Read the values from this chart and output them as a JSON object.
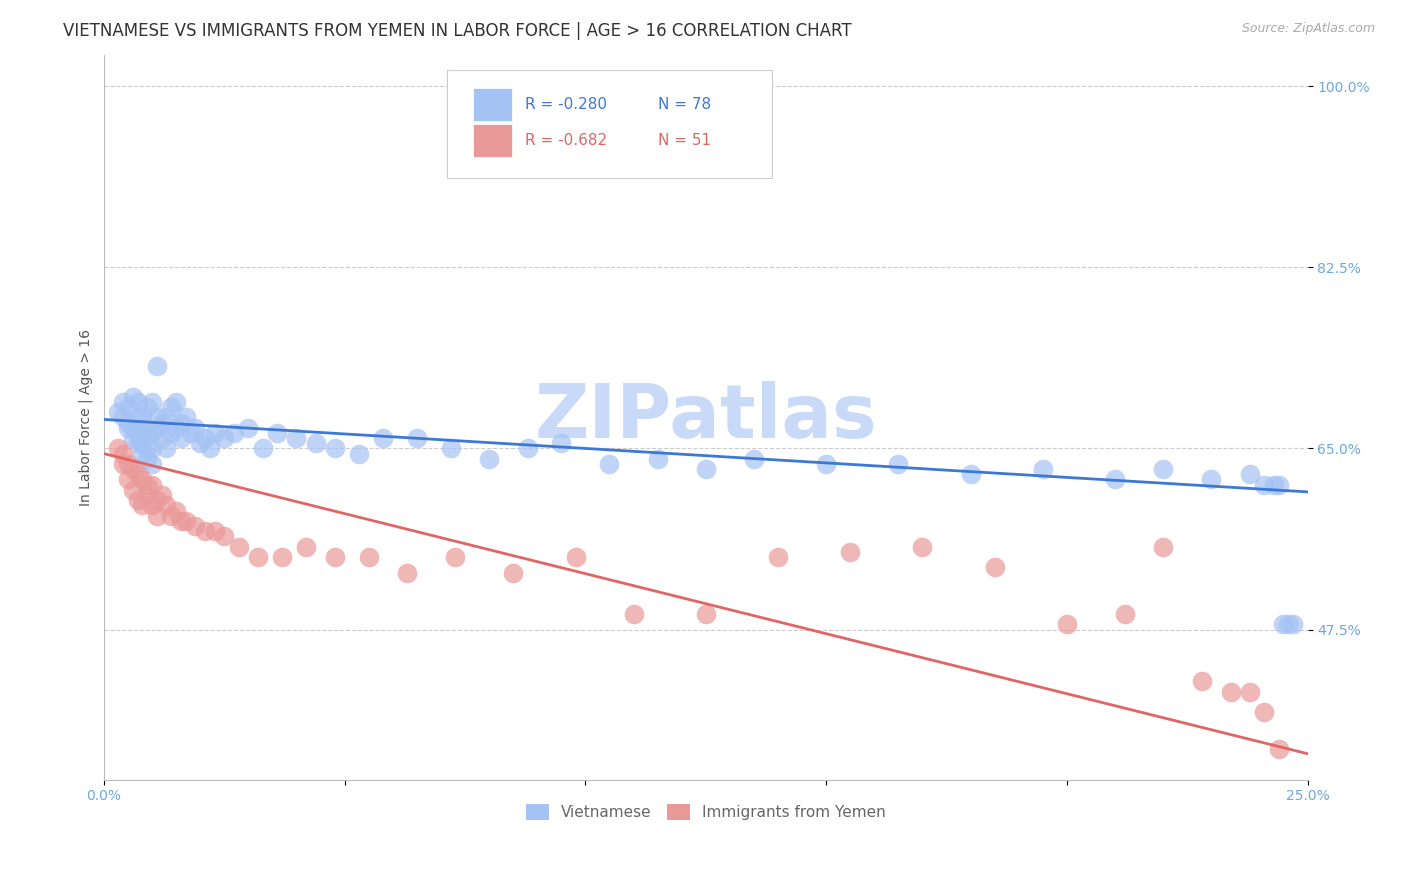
{
  "title": "VIETNAMESE VS IMMIGRANTS FROM YEMEN IN LABOR FORCE | AGE > 16 CORRELATION CHART",
  "source": "Source: ZipAtlas.com",
  "ylabel": "In Labor Force | Age > 16",
  "xlim": [
    0.0,
    0.25
  ],
  "ylim": [
    0.33,
    1.03
  ],
  "yticks": [
    0.475,
    0.65,
    0.825,
    1.0
  ],
  "ytick_labels": [
    "47.5%",
    "65.0%",
    "82.5%",
    "100.0%"
  ],
  "xticks": [
    0.0,
    0.05,
    0.1,
    0.15,
    0.2,
    0.25
  ],
  "xtick_labels": [
    "0.0%",
    "",
    "",
    "",
    "",
    "25.0%"
  ],
  "title_fontsize": 12,
  "source_fontsize": 9,
  "axis_label_fontsize": 10,
  "tick_label_fontsize": 10,
  "legend_R1": "-0.280",
  "legend_N1": "78",
  "legend_R2": "-0.682",
  "legend_N2": "51",
  "blue_color": "#a4c2f4",
  "pink_color": "#ea9999",
  "blue_line_color": "#3c78d8",
  "pink_line_color": "#e06666",
  "tick_color": "#6fa8dc",
  "watermark": "ZIPatlas",
  "watermark_color": "#c9daf8",
  "background_color": "#ffffff",
  "vietnamese_x": [
    0.003,
    0.004,
    0.004,
    0.005,
    0.005,
    0.005,
    0.006,
    0.006,
    0.006,
    0.007,
    0.007,
    0.007,
    0.007,
    0.008,
    0.008,
    0.008,
    0.008,
    0.009,
    0.009,
    0.009,
    0.009,
    0.01,
    0.01,
    0.01,
    0.01,
    0.011,
    0.011,
    0.011,
    0.012,
    0.012,
    0.013,
    0.013,
    0.014,
    0.014,
    0.015,
    0.015,
    0.016,
    0.016,
    0.017,
    0.018,
    0.019,
    0.02,
    0.021,
    0.022,
    0.023,
    0.025,
    0.027,
    0.03,
    0.033,
    0.036,
    0.04,
    0.044,
    0.048,
    0.053,
    0.058,
    0.065,
    0.072,
    0.08,
    0.088,
    0.095,
    0.105,
    0.115,
    0.125,
    0.135,
    0.15,
    0.165,
    0.18,
    0.195,
    0.21,
    0.22,
    0.23,
    0.238,
    0.241,
    0.243,
    0.244,
    0.245,
    0.246,
    0.247
  ],
  "vietnamese_y": [
    0.685,
    0.68,
    0.695,
    0.67,
    0.675,
    0.69,
    0.66,
    0.67,
    0.7,
    0.655,
    0.665,
    0.68,
    0.695,
    0.645,
    0.655,
    0.665,
    0.68,
    0.64,
    0.65,
    0.665,
    0.69,
    0.635,
    0.65,
    0.665,
    0.695,
    0.73,
    0.67,
    0.68,
    0.66,
    0.675,
    0.65,
    0.68,
    0.665,
    0.69,
    0.67,
    0.695,
    0.66,
    0.675,
    0.68,
    0.665,
    0.67,
    0.655,
    0.66,
    0.65,
    0.665,
    0.66,
    0.665,
    0.67,
    0.65,
    0.665,
    0.66,
    0.655,
    0.65,
    0.645,
    0.66,
    0.66,
    0.65,
    0.64,
    0.65,
    0.655,
    0.635,
    0.64,
    0.63,
    0.64,
    0.635,
    0.635,
    0.625,
    0.63,
    0.62,
    0.63,
    0.62,
    0.625,
    0.615,
    0.615,
    0.615,
    0.48,
    0.48,
    0.48
  ],
  "yemen_x": [
    0.003,
    0.004,
    0.004,
    0.005,
    0.005,
    0.006,
    0.006,
    0.007,
    0.007,
    0.008,
    0.008,
    0.009,
    0.009,
    0.01,
    0.01,
    0.011,
    0.011,
    0.012,
    0.013,
    0.014,
    0.015,
    0.016,
    0.017,
    0.019,
    0.021,
    0.023,
    0.025,
    0.028,
    0.032,
    0.037,
    0.042,
    0.048,
    0.055,
    0.063,
    0.073,
    0.085,
    0.098,
    0.11,
    0.125,
    0.14,
    0.155,
    0.17,
    0.185,
    0.2,
    0.212,
    0.22,
    0.228,
    0.234,
    0.238,
    0.241,
    0.244
  ],
  "yemen_y": [
    0.65,
    0.635,
    0.645,
    0.62,
    0.635,
    0.61,
    0.63,
    0.6,
    0.625,
    0.595,
    0.62,
    0.605,
    0.615,
    0.595,
    0.615,
    0.585,
    0.6,
    0.605,
    0.595,
    0.585,
    0.59,
    0.58,
    0.58,
    0.575,
    0.57,
    0.57,
    0.565,
    0.555,
    0.545,
    0.545,
    0.555,
    0.545,
    0.545,
    0.53,
    0.545,
    0.53,
    0.545,
    0.49,
    0.49,
    0.545,
    0.55,
    0.555,
    0.535,
    0.48,
    0.49,
    0.555,
    0.425,
    0.415,
    0.415,
    0.395,
    0.36
  ]
}
